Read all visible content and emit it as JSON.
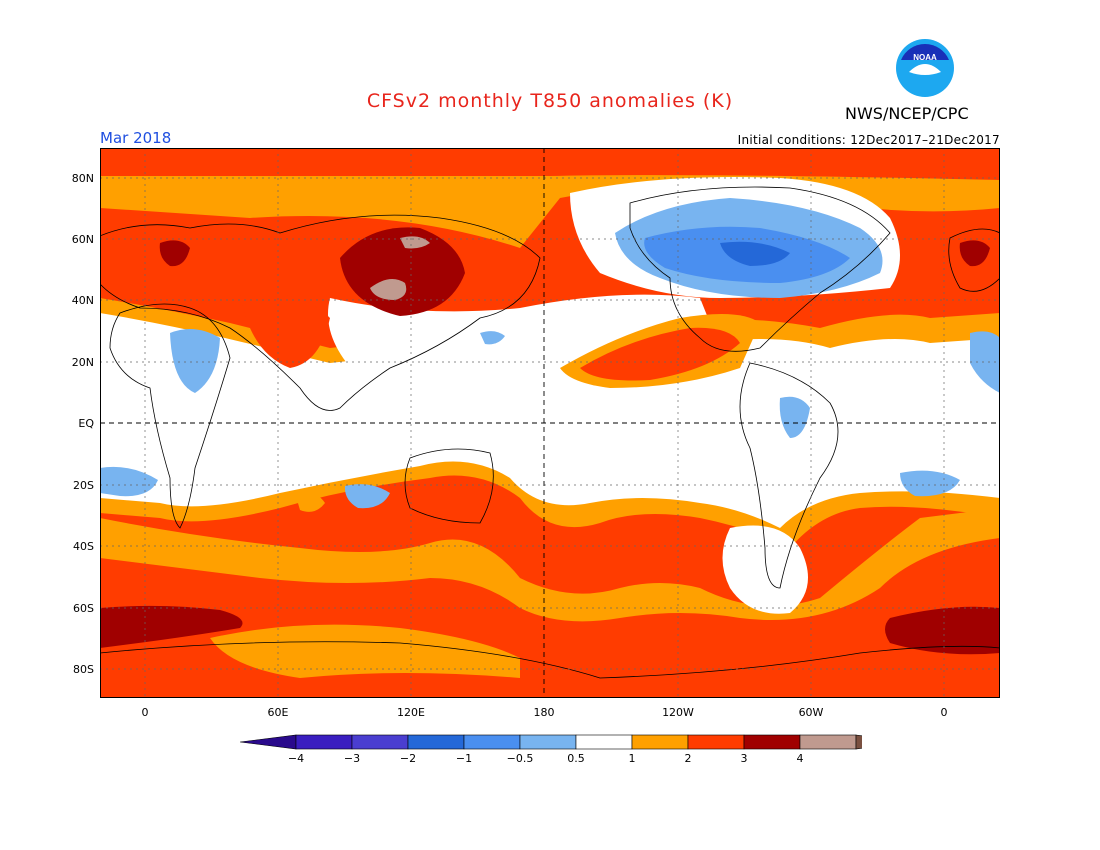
{
  "header": {
    "title": "CFSv2 monthly T850 anomalies (K)",
    "agency": "NWS/NCEP/CPC",
    "logo_text": "NOAA",
    "valid_month": "Mar 2018",
    "initial_conditions": "Initial conditions: 12Dec2017–21Dec2017"
  },
  "axes": {
    "lat_labels": [
      "80N",
      "60N",
      "40N",
      "20N",
      "EQ",
      "20S",
      "40S",
      "60S",
      "80S"
    ],
    "lon_labels": [
      "0",
      "60E",
      "120E",
      "180",
      "120W",
      "60W",
      "0"
    ]
  },
  "colors": {
    "pos_0_5_1": "#ffa000",
    "pos_1_2": "#ff3c00",
    "pos_2_3": "#a00000",
    "pos_3_4": "#c09a8f",
    "neg_0_5_1": "#78b4f0",
    "neg_1_2": "#4a8ff0",
    "neg_2_3": "#2468d8",
    "neutral": "#ffffff"
  },
  "colorbar": {
    "labels": [
      "−4",
      "−3",
      "−2",
      "−1",
      "−0.5",
      "0.5",
      "1",
      "2",
      "3",
      "4"
    ],
    "colors": [
      "#3a1ec0",
      "#4a3ed0",
      "#2468d8",
      "#4a8ff0",
      "#78b4f0",
      "#ffffff",
      "#ffa000",
      "#ff3c00",
      "#a00000",
      "#c09a8f"
    ],
    "low_arrow_color": "#2a0a8c",
    "high_arrow_color": "#7a5040"
  }
}
